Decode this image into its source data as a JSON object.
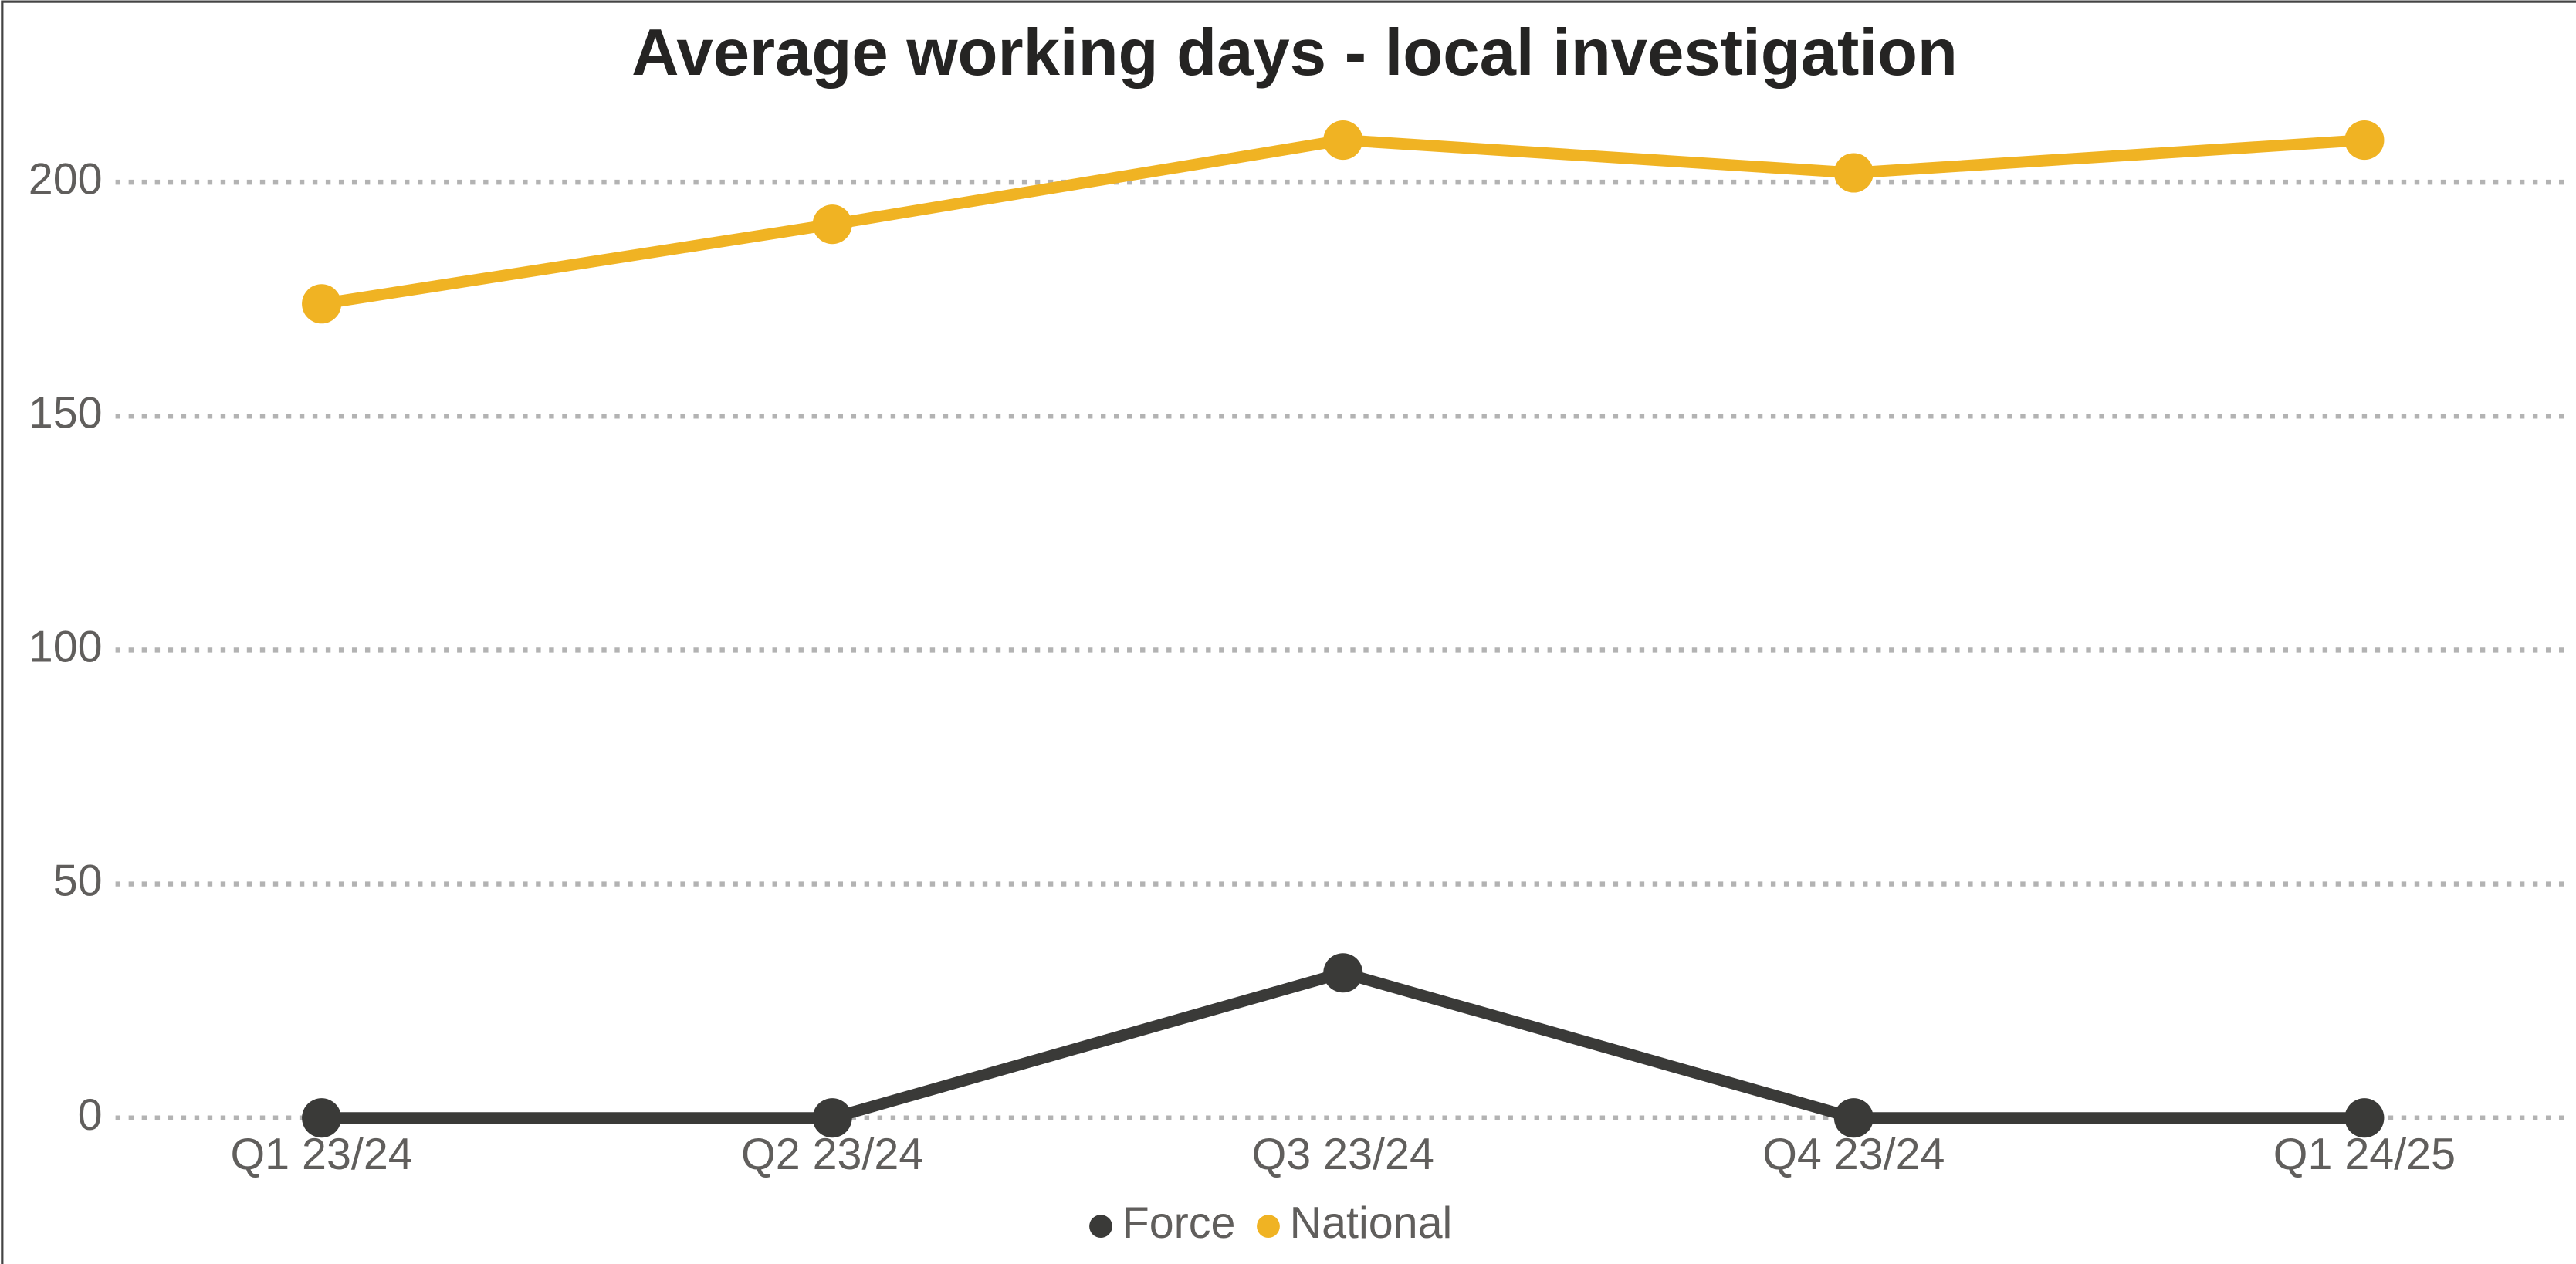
{
  "chart_data": {
    "type": "line",
    "title": "Average working days - local investigation",
    "categories": [
      "Q1 23/24",
      "Q2 23/24",
      "Q3 23/24",
      "Q4 23/24",
      "Q1 24/25"
    ],
    "series": [
      {
        "name": "Force",
        "color": "#3a3a38",
        "values": [
          0,
          0,
          31,
          0,
          0
        ]
      },
      {
        "name": "National",
        "color": "#f0b323",
        "values": [
          174,
          191,
          209,
          202,
          209
        ]
      }
    ],
    "ylim": [
      0,
      220
    ],
    "yticks": [
      0,
      50,
      100,
      150,
      200
    ],
    "grid": true,
    "legend": "bottom"
  }
}
